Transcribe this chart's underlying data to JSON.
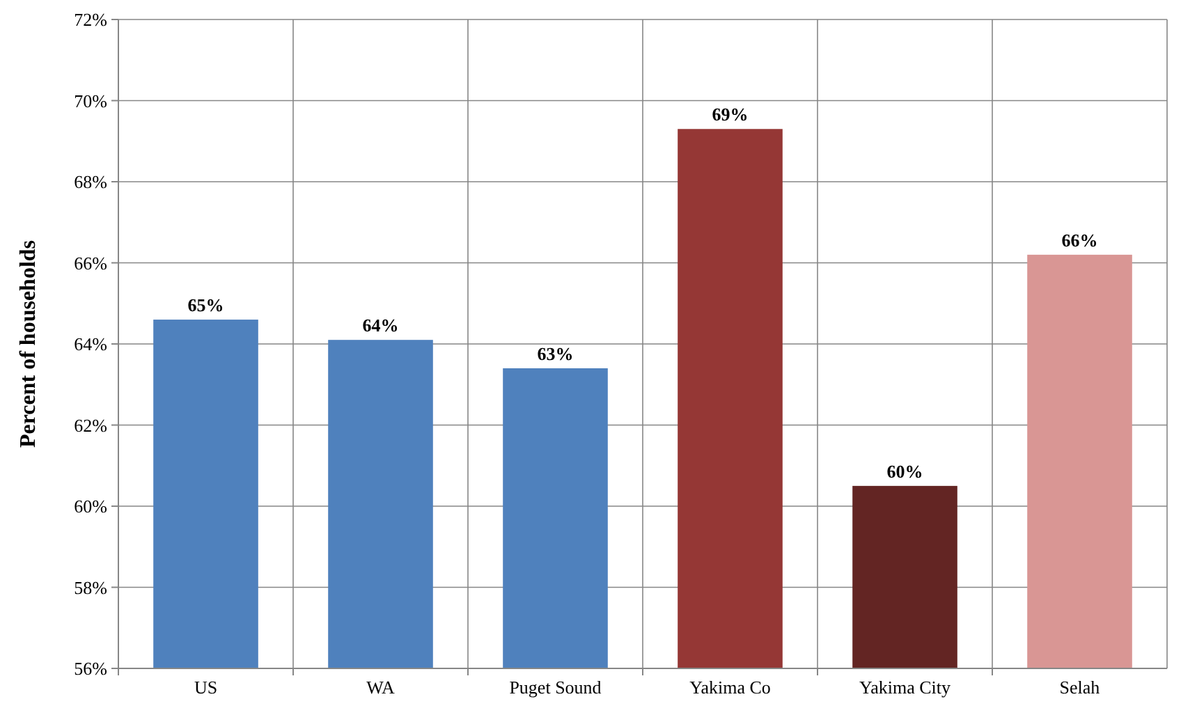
{
  "chart_data": {
    "type": "bar",
    "ylabel": "Percent of households",
    "categories": [
      "US",
      "WA",
      "Puget Sound",
      "Yakima Co",
      "Yakima City",
      "Selah"
    ],
    "values": [
      64.6,
      64.1,
      63.4,
      69.3,
      60.5,
      66.2
    ],
    "colors": [
      "#4f81bd",
      "#4f81bd",
      "#4f81bd",
      "#953735",
      "#632523",
      "#d99694"
    ],
    "value_labels": [
      "65%",
      "64%",
      "63%",
      "69%",
      "60%",
      "66%"
    ],
    "ylim": [
      56,
      72
    ],
    "yticks": [
      {
        "value": 56,
        "label": "56%"
      },
      {
        "value": 58,
        "label": "58%"
      },
      {
        "value": 60,
        "label": "60%"
      },
      {
        "value": 62,
        "label": "62%"
      },
      {
        "value": 64,
        "label": "64%"
      },
      {
        "value": 66,
        "label": "66%"
      },
      {
        "value": 68,
        "label": "68%"
      },
      {
        "value": 70,
        "label": "70%"
      },
      {
        "value": 72,
        "label": "72%"
      }
    ],
    "grid": true
  }
}
